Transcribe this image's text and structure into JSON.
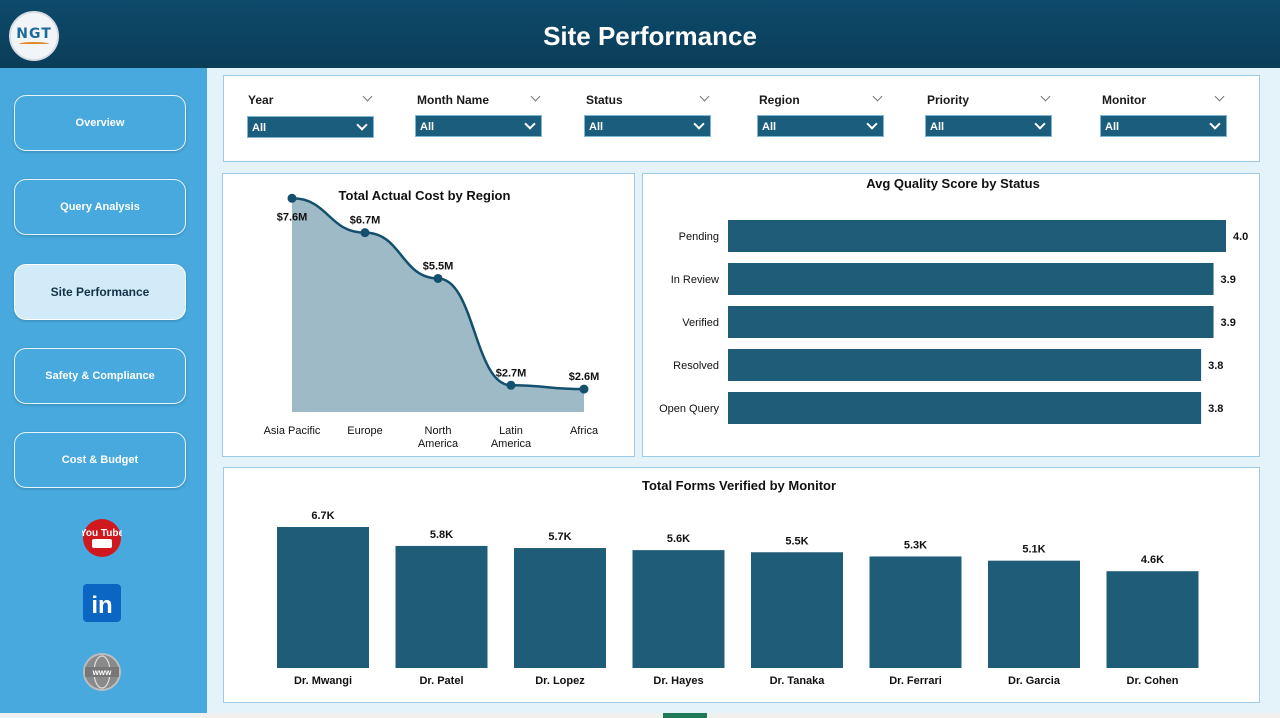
{
  "header": {
    "title": "Site Performance",
    "logo_text": "NGT"
  },
  "sidebar": {
    "items": [
      {
        "label": "Overview"
      },
      {
        "label": "Query Analysis"
      },
      {
        "label": "Site Performance",
        "active": true
      },
      {
        "label": "Safety & Compliance"
      },
      {
        "label": "Cost & Budget"
      }
    ],
    "social": [
      {
        "icon": "youtube-icon",
        "label": "You Tube"
      },
      {
        "icon": "linkedin-icon",
        "label": "in"
      },
      {
        "icon": "web-icon",
        "label": "www"
      }
    ]
  },
  "filters": [
    {
      "label": "Year",
      "value": "All"
    },
    {
      "label": "Month Name",
      "value": "All"
    },
    {
      "label": "Status",
      "value": "All"
    },
    {
      "label": "Region",
      "value": "All"
    },
    {
      "label": "Priority",
      "value": "All"
    },
    {
      "label": "Monitor",
      "value": "All"
    }
  ],
  "colors": {
    "header": "#0d4a6b",
    "sidebar": "#47a9de",
    "bar": "#1f5c78",
    "area_fill": "#9fbac7",
    "line": "#13506e"
  },
  "chart_data": [
    {
      "type": "area",
      "title": "Total Actual Cost by Region",
      "categories": [
        "Asia Pacific",
        "Europe",
        "North America",
        "Latin America",
        "Africa"
      ],
      "category_lines": [
        [
          "Asia Pacific"
        ],
        [
          "Europe"
        ],
        [
          "North",
          "America"
        ],
        [
          "Latin",
          "America"
        ],
        [
          "Africa"
        ]
      ],
      "values": [
        7.6,
        6.7,
        5.5,
        2.7,
        2.6
      ],
      "labels": [
        "$7.6M",
        "$6.7M",
        "$5.5M",
        "$2.7M",
        "$2.6M"
      ],
      "unit": "$M"
    },
    {
      "type": "bar",
      "orientation": "horizontal",
      "title": "Avg Quality Score by Status",
      "categories": [
        "Pending",
        "In Review",
        "Verified",
        "Resolved",
        "Open Query"
      ],
      "values": [
        4.0,
        3.9,
        3.9,
        3.8,
        3.8
      ],
      "labels": [
        "4.0",
        "3.9",
        "3.9",
        "3.8",
        "3.8"
      ]
    },
    {
      "type": "bar",
      "orientation": "vertical",
      "title": "Total Forms Verified by Monitor",
      "categories": [
        "Dr. Mwangi",
        "Dr. Patel",
        "Dr. Lopez",
        "Dr. Hayes",
        "Dr. Tanaka",
        "Dr. Ferrari",
        "Dr. Garcia",
        "Dr. Cohen"
      ],
      "values": [
        6.7,
        5.8,
        5.7,
        5.6,
        5.5,
        5.3,
        5.1,
        4.6
      ],
      "labels": [
        "6.7K",
        "5.8K",
        "5.7K",
        "5.6K",
        "5.5K",
        "5.3K",
        "5.1K",
        "4.6K"
      ],
      "unit": "K"
    }
  ]
}
